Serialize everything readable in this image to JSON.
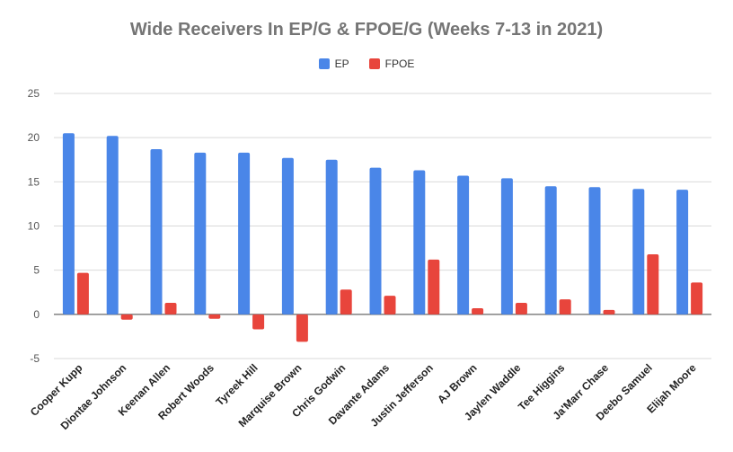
{
  "chart_data": {
    "type": "bar",
    "title": "Wide Receivers In EP/G & FPOE/G (Weeks 7-13 in 2021)",
    "categories": [
      "Cooper Kupp",
      "Diontae Johnson",
      "Keenan Allen",
      "Robert Woods",
      "Tyreek Hill",
      "Marquise Brown",
      "Chris Godwin",
      "Davante Adams",
      "Justin Jefferson",
      "AJ Brown",
      "Jaylen Waddle",
      "Tee Higgins",
      "Ja'Marr Chase",
      "Deebo Samuel",
      "Elijah Moore"
    ],
    "series": [
      {
        "name": "EP",
        "color": "#4a86e8",
        "values": [
          20.5,
          20.2,
          18.7,
          18.3,
          18.3,
          17.7,
          17.5,
          16.6,
          16.3,
          15.7,
          15.4,
          14.5,
          14.4,
          14.2,
          14.1
        ]
      },
      {
        "name": "FPOE",
        "color": "#e8453c",
        "values": [
          4.7,
          -0.6,
          1.3,
          -0.5,
          -1.7,
          -3.1,
          2.8,
          2.1,
          6.2,
          0.7,
          1.3,
          1.7,
          0.5,
          6.8,
          3.6
        ]
      }
    ],
    "yticks": [
      -5,
      0,
      5,
      10,
      15,
      20,
      25
    ],
    "ylim": [
      -5,
      25
    ],
    "xlabel": "",
    "ylabel": "",
    "grid": true,
    "legend_position": "top"
  }
}
